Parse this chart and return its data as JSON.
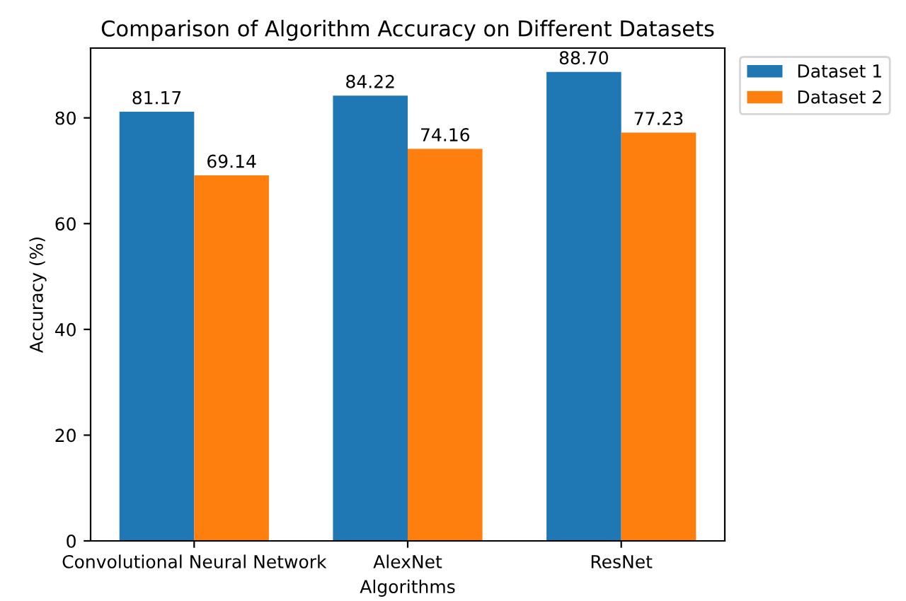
{
  "chart_data": {
    "type": "bar",
    "title": "Comparison of Algorithm Accuracy on Different Datasets",
    "xlabel": "Algorithms",
    "ylabel": "Accuracy (%)",
    "categories": [
      "Convolutional Neural Network",
      "AlexNet",
      "ResNet"
    ],
    "series": [
      {
        "name": "Dataset 1",
        "color": "#1f77b4",
        "values": [
          81.17,
          84.22,
          88.7
        ],
        "value_labels": [
          "81.17",
          "84.22",
          "88.70"
        ]
      },
      {
        "name": "Dataset 2",
        "color": "#ff7f0e",
        "values": [
          69.14,
          74.16,
          77.23
        ],
        "value_labels": [
          "69.14",
          "74.16",
          "77.23"
        ]
      }
    ],
    "ylim": [
      0,
      93.2
    ],
    "yticks": [
      0,
      20,
      40,
      60,
      80
    ],
    "legend": "top right",
    "grid": false
  }
}
